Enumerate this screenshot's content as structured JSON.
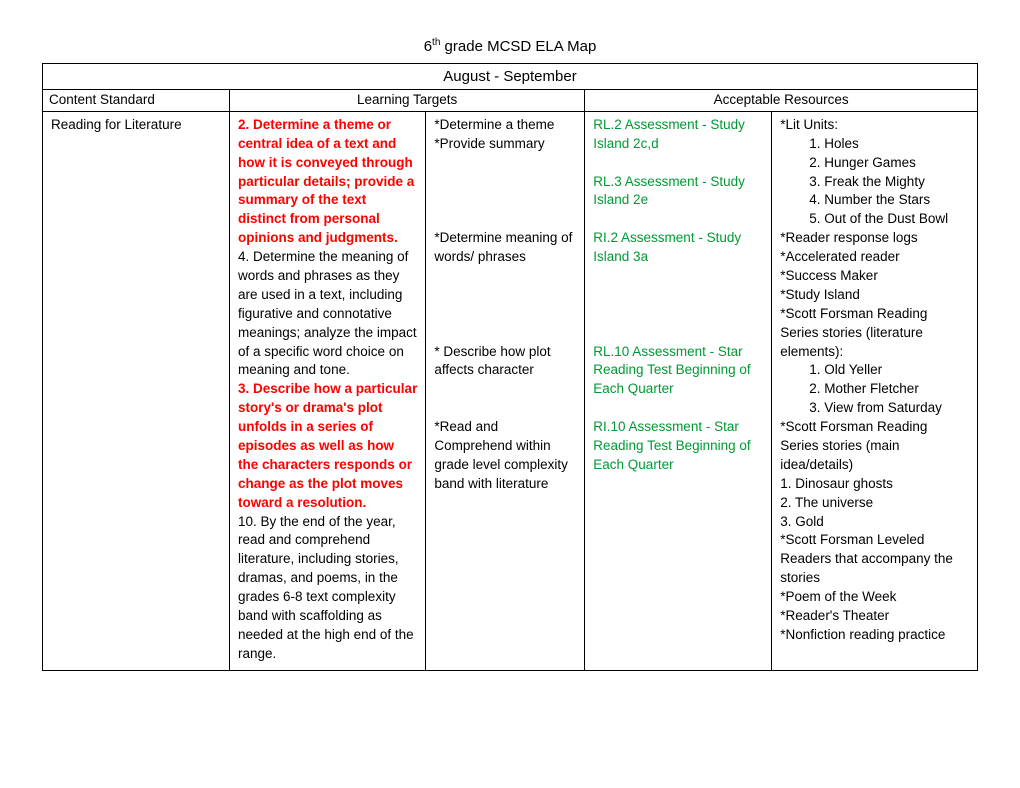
{
  "title_prefix": "6",
  "title_sup": "th",
  "title_rest": " grade MCSD ELA Map",
  "period": "August - September",
  "headers": {
    "col1": "Content Standard",
    "col2": "Learning Targets",
    "col3": "Acceptable Resources"
  },
  "content_standard": "Reading for Literature",
  "lt_col1": {
    "s2": "2. Determine a theme or central idea of a text and how it is conveyed through particular details; provide a summary of the text distinct from personal opinions and judgments.",
    "s4": "4. Determine the meaning of words and phrases as they are used in a text, including figurative and connotative meanings; analyze the impact of a specific word choice on meaning and tone.",
    "s3": "3.  Describe how a particular story's or drama's plot unfolds in a series of episodes as well as how the characters responds or change as the plot moves toward a resolution.",
    "s10": "10. By the end of the year, read and comprehend literature, including stories, dramas, and poems, in the grades 6-8 text complexity band with scaffolding as needed at the high end of the range."
  },
  "lt_col2": {
    "a": "*Determine a theme",
    "b": "*Provide summary",
    "c": "*Determine  meaning  of words/ phrases",
    "d": "* Describe how plot affects character",
    "e": "*Read and Comprehend within grade level complexity band with literature"
  },
  "ar1": {
    "a": "RL.2 Assessment - Study Island 2c,d",
    "b": "RL.3 Assessment - Study Island 2e",
    "c": "RI.2 Assessment - Study Island 3a",
    "d": "RL.10 Assessment - Star Reading Test Beginning of Each Quarter",
    "e": "RI.10 Assessment - Star Reading Test  Beginning of Each Quarter"
  },
  "ar2": {
    "lit_units_label": "*Lit Units:",
    "lit_units": [
      "Holes",
      "Hunger Games",
      "Freak the Mighty",
      "Number the Stars",
      "Out of the Dust Bowl"
    ],
    "r1": "*Reader response logs",
    "r2": "*Accelerated reader",
    "r3": "*Success Maker",
    "r4": "*Study Island",
    "sf_lit_label": "*Scott Forsman Reading Series stories (literature elements):",
    "sf_lit": [
      " Old Yeller",
      "Mother  Fletcher",
      "View from Saturday"
    ],
    "sf_main_label": "*Scott Forsman Reading Series stories (main idea/details)",
    "sf_main1": "1. Dinosaur ghosts",
    "sf_main2": "2. The universe",
    "sf_main3": "3. Gold",
    "leveled": "*Scott Forsman Leveled Readers that accompany the stories",
    "poem": "*Poem of the Week",
    "theater": "*Reader's Theater",
    "nonfic": "*Nonfiction reading practice"
  }
}
